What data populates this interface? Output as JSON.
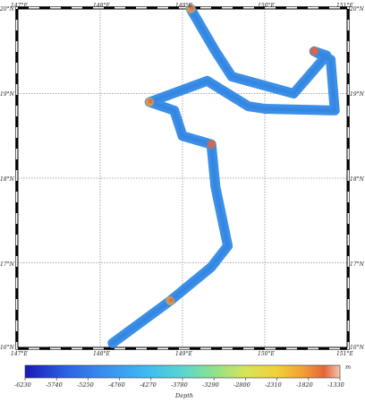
{
  "map": {
    "lon_range": [
      147,
      151
    ],
    "lat_range": [
      16,
      20
    ],
    "grid": true,
    "lon_labels": [
      "147°E",
      "148°E",
      "149°E",
      "150°E",
      "151°E"
    ],
    "lat_labels": [
      "16°N",
      "17°N",
      "18°N",
      "19°N",
      "20°N"
    ],
    "track_lon_lat": [
      [
        148.15,
        16.05
      ],
      [
        148.85,
        16.55
      ],
      [
        149.35,
        16.95
      ],
      [
        149.55,
        17.2
      ],
      [
        149.4,
        17.9
      ],
      [
        149.35,
        18.4
      ],
      [
        149.0,
        18.5
      ],
      [
        148.9,
        18.8
      ],
      [
        148.6,
        18.9
      ],
      [
        149.3,
        19.15
      ],
      [
        149.8,
        18.85
      ],
      [
        150.0,
        18.82
      ],
      [
        150.85,
        18.8
      ],
      [
        150.8,
        19.4
      ],
      [
        150.6,
        19.5
      ],
      [
        150.75,
        19.45
      ],
      [
        150.35,
        19.0
      ],
      [
        149.6,
        19.2
      ],
      [
        149.4,
        19.5
      ],
      [
        149.1,
        20.0
      ]
    ]
  },
  "colorbar": {
    "tick_labels": [
      "-6230",
      "-5740",
      "-5250",
      "-4760",
      "-4270",
      "-3780",
      "-3290",
      "-2800",
      "-2310",
      "-1820",
      "-1330"
    ],
    "unit": "m",
    "label": "Depth",
    "colors": [
      "#1a1ab5",
      "#2a5de0",
      "#3a8ef0",
      "#3cb8f2",
      "#59d6d0",
      "#8fe28a",
      "#d6e45a",
      "#f2cf3c",
      "#f2a233",
      "#e5653a",
      "#f4c6b0"
    ]
  }
}
